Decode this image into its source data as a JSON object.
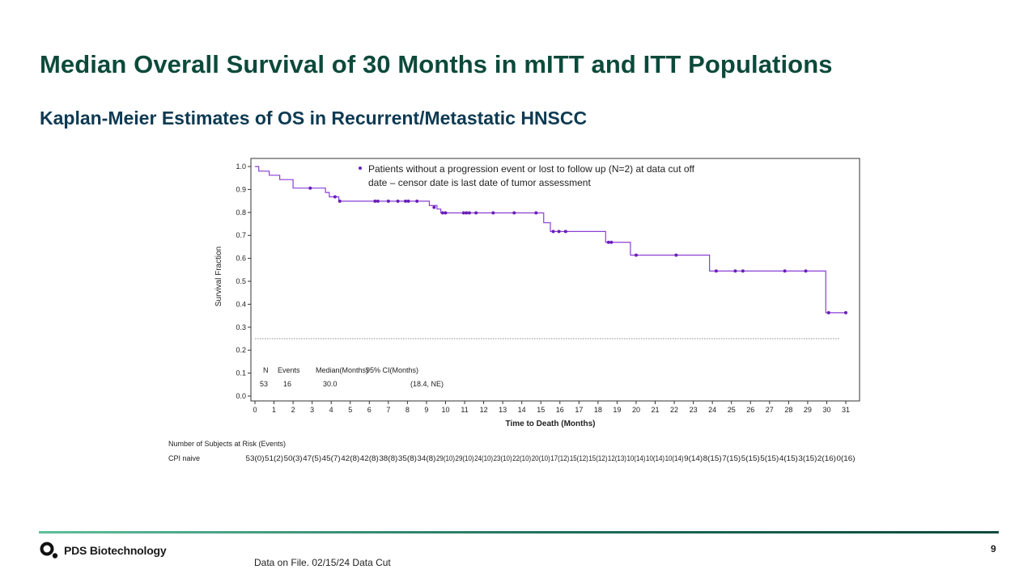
{
  "slide": {
    "title": "Median Overall Survival of 30 Months in mITT and ITT Populations",
    "subtitle": "Kaplan-Meier Estimates of OS in Recurrent/Metastatic HNSCC",
    "footnote": "Data on File. 02/15/24 Data Cut",
    "page_number": "9",
    "company": "PDS Biotechnology"
  },
  "colors": {
    "title": "#0c4a3b",
    "subtitle": "#0e3a52",
    "curve": "#8a3fd6",
    "censor": "#6a1fb8",
    "reference_line": "#666666"
  },
  "chart_data": {
    "type": "kaplan-meier",
    "xlabel": "Time to Death (Months)",
    "ylabel": "Survival Fraction",
    "xlim": [
      0,
      31
    ],
    "ylim": [
      0,
      1.0
    ],
    "x_ticks": [
      0,
      1,
      2,
      3,
      4,
      5,
      6,
      7,
      8,
      9,
      10,
      11,
      12,
      13,
      14,
      15,
      16,
      17,
      18,
      19,
      20,
      21,
      22,
      23,
      24,
      25,
      26,
      27,
      28,
      29,
      30,
      31
    ],
    "y_ticks": [
      "0.0",
      "0.1",
      "0.2",
      "0.3",
      "0.4",
      "0.5",
      "0.6",
      "0.7",
      "0.8",
      "0.9",
      "1.0"
    ],
    "reference_line_y": 0.25,
    "curve": [
      [
        0,
        1.0
      ],
      [
        0.2,
        0.98
      ],
      [
        0.75,
        0.962
      ],
      [
        1.3,
        0.943
      ],
      [
        2.0,
        0.906
      ],
      [
        3.7,
        0.887
      ],
      [
        3.9,
        0.868
      ],
      [
        4.4,
        0.849
      ],
      [
        9.15,
        0.83
      ],
      [
        9.55,
        0.815
      ],
      [
        9.75,
        0.798
      ],
      [
        15.15,
        0.755
      ],
      [
        15.5,
        0.717
      ],
      [
        18.4,
        0.67
      ],
      [
        19.7,
        0.614
      ],
      [
        23.85,
        0.545
      ],
      [
        29.95,
        0.363
      ],
      [
        31.0,
        0.363
      ]
    ],
    "censor_marks": [
      [
        2.9,
        0.906
      ],
      [
        4.2,
        0.868
      ],
      [
        4.45,
        0.849
      ],
      [
        6.3,
        0.849
      ],
      [
        6.45,
        0.849
      ],
      [
        7.0,
        0.849
      ],
      [
        7.5,
        0.849
      ],
      [
        7.9,
        0.849
      ],
      [
        8.05,
        0.849
      ],
      [
        8.5,
        0.849
      ],
      [
        9.4,
        0.822
      ],
      [
        9.85,
        0.798
      ],
      [
        10.0,
        0.798
      ],
      [
        10.95,
        0.798
      ],
      [
        11.1,
        0.798
      ],
      [
        11.25,
        0.798
      ],
      [
        11.6,
        0.798
      ],
      [
        12.5,
        0.798
      ],
      [
        13.6,
        0.798
      ],
      [
        14.75,
        0.798
      ],
      [
        15.65,
        0.717
      ],
      [
        15.95,
        0.717
      ],
      [
        16.3,
        0.717
      ],
      [
        18.55,
        0.67
      ],
      [
        18.7,
        0.67
      ],
      [
        20.0,
        0.614
      ],
      [
        22.1,
        0.614
      ],
      [
        24.2,
        0.545
      ],
      [
        25.2,
        0.545
      ],
      [
        25.6,
        0.545
      ],
      [
        27.8,
        0.545
      ],
      [
        28.9,
        0.545
      ],
      [
        30.1,
        0.363
      ],
      [
        31.0,
        0.363
      ]
    ],
    "legend_text_line1": "Patients without a progression event or lost to follow up (N=2) at data cut off",
    "legend_text_line2": "date – censor date is last date of tumor assessment",
    "stats_table": {
      "headers": [
        "N",
        "Events",
        "Median(Months)",
        "95% CI(Months)"
      ],
      "values": [
        "53",
        "16",
        "30.0",
        "(18.4, NE)"
      ]
    },
    "at_risk": {
      "title": "Number of Subjects at Risk (Events)",
      "group_label": "CPI naive",
      "values": [
        "53(0)",
        "51(2)",
        "50(3)",
        "47(5)",
        "45(7)",
        "42(8)",
        "42(8)",
        "38(8)",
        "35(8)",
        "34(8)",
        "29(10)",
        "29(10)",
        "24(10)",
        "23(10)",
        "22(10)",
        "20(10)",
        "17(12)",
        "15(12)",
        "15(12)",
        "12(13)",
        "10(14)",
        "10(14)",
        "10(14)",
        "9(14)",
        "8(15)",
        "7(15)",
        "5(15)",
        "5(15)",
        "4(15)",
        "3(15)",
        "2(16)",
        "0(16)"
      ]
    }
  }
}
